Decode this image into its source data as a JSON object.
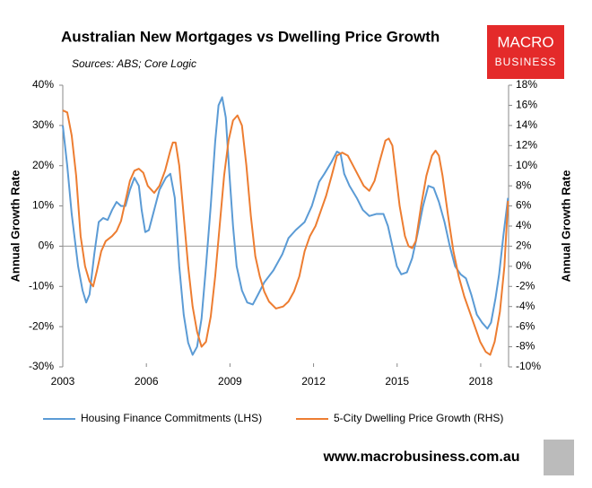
{
  "chart_data": {
    "type": "line",
    "title": "Australian New Mortgages vs Dwelling Price Growth",
    "subtitle": "Sources: ABS; Core Logic",
    "brand": [
      "MACRO",
      "BUSINESS"
    ],
    "website": "www.macrobusiness.com.au",
    "ylabel": "Annual Growth Rate",
    "y2label": "Annual Growth Rate",
    "xlim": [
      2003,
      2019
    ],
    "xticks": [
      2003,
      2006,
      2009,
      2012,
      2015,
      2018
    ],
    "ylim": [
      -30,
      40
    ],
    "yticks": [
      {
        "value": 40,
        "label": "40%"
      },
      {
        "value": 30,
        "label": "30%"
      },
      {
        "value": 20,
        "label": "20%"
      },
      {
        "value": 10,
        "label": "10%"
      },
      {
        "value": 0,
        "label": "0%"
      },
      {
        "value": -10,
        "label": "-10%"
      },
      {
        "value": -20,
        "label": "-20%"
      },
      {
        "value": -30,
        "label": "-30%"
      }
    ],
    "y2lim": [
      -10,
      18
    ],
    "y2ticks": [
      {
        "value": 18,
        "label": "18%"
      },
      {
        "value": 16,
        "label": "16%"
      },
      {
        "value": 14,
        "label": "14%"
      },
      {
        "value": 12,
        "label": "12%"
      },
      {
        "value": 10,
        "label": "10%"
      },
      {
        "value": 8,
        "label": "8%"
      },
      {
        "value": 6,
        "label": "6%"
      },
      {
        "value": 4,
        "label": "4%"
      },
      {
        "value": 2,
        "label": "2%"
      },
      {
        "value": 0,
        "label": "0%"
      },
      {
        "value": -2,
        "label": "-2%"
      },
      {
        "value": -4,
        "label": "-4%"
      },
      {
        "value": -6,
        "label": "-6%"
      },
      {
        "value": -8,
        "label": "-8%"
      },
      {
        "value": -10,
        "label": "-10%"
      }
    ],
    "legend": "bottom",
    "series": [
      {
        "name": "Housing Finance Commitments (LHS)",
        "color": "#5b9bd5",
        "axis": "y",
        "x": [
          2003.0,
          2003.16,
          2003.32,
          2003.55,
          2003.71,
          2003.84,
          2003.96,
          2004.13,
          2004.29,
          2004.45,
          2004.61,
          2004.77,
          2004.93,
          2005.09,
          2005.25,
          2005.41,
          2005.57,
          2005.73,
          2005.83,
          2005.96,
          2006.09,
          2006.28,
          2006.47,
          2006.7,
          2006.86,
          2007.02,
          2007.18,
          2007.34,
          2007.5,
          2007.66,
          2007.82,
          2007.98,
          2008.14,
          2008.31,
          2008.47,
          2008.59,
          2008.72,
          2008.85,
          2008.98,
          2009.11,
          2009.24,
          2009.43,
          2009.62,
          2009.82,
          2010.01,
          2010.23,
          2010.56,
          2010.88,
          2011.1,
          2011.36,
          2011.68,
          2011.94,
          2012.2,
          2012.39,
          2012.65,
          2012.84,
          2012.97,
          2013.1,
          2013.29,
          2013.55,
          2013.77,
          2014.0,
          2014.25,
          2014.51,
          2014.67,
          2014.83,
          2014.99,
          2015.15,
          2015.35,
          2015.54,
          2015.73,
          2015.93,
          2016.12,
          2016.31,
          2016.5,
          2016.7,
          2016.89,
          2017.08,
          2017.28,
          2017.47,
          2017.66,
          2017.86,
          2018.05,
          2018.24,
          2018.37,
          2018.53,
          2018.66,
          2018.82,
          2018.98
        ],
        "values": [
          30,
          20,
          8,
          -5,
          -11,
          -14,
          -12,
          -2,
          6,
          7,
          6.5,
          9,
          11,
          10,
          10,
          14,
          17,
          15,
          9,
          3.5,
          4,
          9,
          14,
          17,
          18,
          12,
          -5,
          -17,
          -24,
          -27,
          -25,
          -18,
          -5,
          10,
          26,
          35,
          37,
          32,
          18,
          5,
          -5,
          -11,
          -14,
          -14.5,
          -12,
          -9,
          -6,
          -2,
          2,
          4,
          6,
          10,
          16,
          18,
          21,
          23.5,
          23,
          18,
          15,
          12,
          9,
          7.5,
          8,
          8,
          5,
          0,
          -5,
          -7,
          -6.5,
          -3,
          3,
          10,
          15,
          14.5,
          11,
          6,
          0,
          -5,
          -7,
          -8,
          -12,
          -17,
          -19,
          -20.5,
          -19,
          -13,
          -7,
          3,
          12
        ]
      },
      {
        "name": "5-City Dwelling Price Growth (RHS)",
        "color": "#ed7d31",
        "axis": "y2",
        "x": [
          2003.0,
          2003.16,
          2003.32,
          2003.48,
          2003.64,
          2003.8,
          2003.96,
          2004.09,
          2004.22,
          2004.38,
          2004.54,
          2004.77,
          2004.93,
          2005.09,
          2005.25,
          2005.41,
          2005.57,
          2005.73,
          2005.89,
          2006.05,
          2006.28,
          2006.47,
          2006.67,
          2006.86,
          2006.95,
          2007.05,
          2007.18,
          2007.34,
          2007.5,
          2007.66,
          2007.82,
          2007.98,
          2008.14,
          2008.31,
          2008.47,
          2008.63,
          2008.79,
          2008.95,
          2009.11,
          2009.27,
          2009.43,
          2009.59,
          2009.75,
          2009.91,
          2010.07,
          2010.23,
          2010.4,
          2010.65,
          2010.91,
          2011.1,
          2011.3,
          2011.49,
          2011.68,
          2011.87,
          2012.07,
          2012.26,
          2012.45,
          2012.65,
          2012.84,
          2013.03,
          2013.23,
          2013.42,
          2013.61,
          2013.8,
          2014.0,
          2014.19,
          2014.38,
          2014.58,
          2014.7,
          2014.83,
          2014.96,
          2015.09,
          2015.28,
          2015.41,
          2015.54,
          2015.67,
          2015.86,
          2016.05,
          2016.25,
          2016.38,
          2016.5,
          2016.63,
          2016.83,
          2017.02,
          2017.21,
          2017.41,
          2017.6,
          2017.79,
          2017.98,
          2018.18,
          2018.34,
          2018.5,
          2018.69,
          2018.85,
          2018.98
        ],
        "values": [
          15.5,
          15.3,
          13,
          9,
          3,
          0,
          -1.5,
          -2,
          -0.5,
          1.5,
          2.5,
          3,
          3.5,
          4.5,
          6.5,
          8.5,
          9.5,
          9.7,
          9.3,
          8,
          7.3,
          8,
          9.5,
          11.5,
          12.3,
          12.3,
          10,
          5,
          0,
          -4,
          -6.5,
          -8,
          -7.5,
          -5,
          -1,
          4,
          9,
          12.5,
          14.5,
          15,
          14,
          10,
          5,
          1,
          -1,
          -2.5,
          -3.5,
          -4.2,
          -4,
          -3.5,
          -2.5,
          -1,
          1.5,
          3,
          4,
          5.5,
          7,
          9,
          11,
          11.3,
          11,
          10,
          9,
          8,
          7.5,
          8.5,
          10.5,
          12.5,
          12.7,
          12,
          9,
          6,
          3,
          2,
          1.8,
          2.5,
          6,
          9,
          11,
          11.5,
          11,
          9,
          5,
          1.5,
          -1,
          -3,
          -4.5,
          -6,
          -7.5,
          -8.5,
          -8.8,
          -7.5,
          -4.5,
          0,
          6.5
        ]
      }
    ]
  }
}
